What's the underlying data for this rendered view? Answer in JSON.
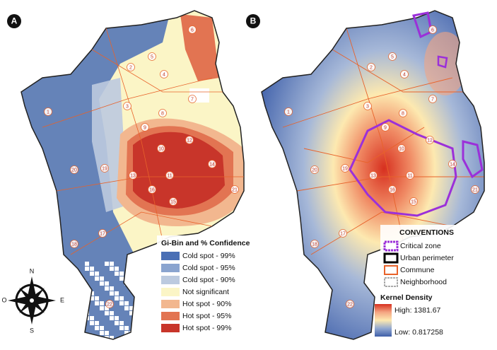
{
  "panels": [
    {
      "label": "A",
      "legend": {
        "title": "Gi-Bin and % Confidence",
        "items": [
          {
            "label": "Cold spot - 99%",
            "color": "#4a6fb5"
          },
          {
            "label": "Cold spot - 95%",
            "color": "#8aa4cf"
          },
          {
            "label": "Cold spot - 90%",
            "color": "#bccadf"
          },
          {
            "label": "Not significant",
            "color": "#fbf5c6"
          },
          {
            "label": "Hot spot - 90%",
            "color": "#f2b78f"
          },
          {
            "label": "Hot spot - 95%",
            "color": "#e27452"
          },
          {
            "label": "Hot spot - 99%",
            "color": "#c8352a"
          }
        ]
      },
      "communes": [
        "6",
        "2",
        "4",
        "7",
        "8",
        "3",
        "1",
        "9",
        "10",
        "13",
        "11",
        "12",
        "16",
        "15",
        "14",
        "21",
        "20",
        "19",
        "17",
        "18",
        "22",
        "5"
      ]
    },
    {
      "label": "B",
      "legend": {
        "title": "CONVENTIONS",
        "items": [
          {
            "label": "Critical zone",
            "color": "#9b30d9"
          },
          {
            "label": "Urban perimeter",
            "color": "#000000"
          },
          {
            "label": "Commune",
            "color": "#e8622a"
          },
          {
            "label": "Neighborhood",
            "color": "#aaaaaa"
          }
        ],
        "density_title": "Kernel Density",
        "high": "High: 1381.67",
        "low": "Low: 0.817258",
        "ramp": [
          "#d7301f",
          "#f4a582",
          "#fde9b0",
          "#92a8d1",
          "#3f5fa8"
        ]
      },
      "communes": [
        "6",
        "2",
        "4",
        "7",
        "8",
        "3",
        "1",
        "9",
        "10",
        "13",
        "11",
        "12",
        "16",
        "15",
        "14",
        "21",
        "20",
        "19",
        "17",
        "18",
        "22",
        "5"
      ]
    }
  ],
  "compass": {
    "n": "N",
    "s": "S",
    "e": "E",
    "w": "O"
  }
}
